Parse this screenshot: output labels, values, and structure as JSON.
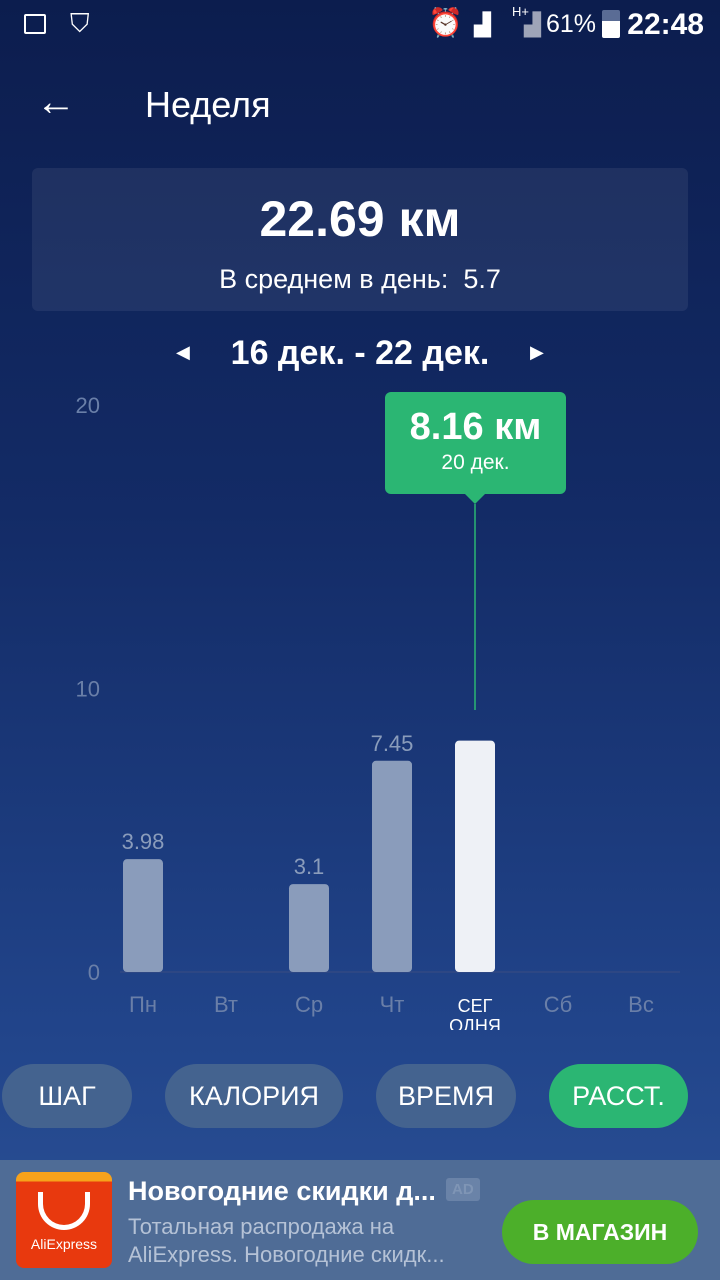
{
  "status_bar": {
    "battery": "61%",
    "time": "22:48",
    "network": "H+",
    "icons": [
      "image-icon",
      "shield-check-icon",
      "alarm-icon",
      "signal-icon",
      "signal-icon",
      "battery-icon"
    ]
  },
  "header": {
    "title": "Неделя",
    "back_icon": "arrow-left-icon"
  },
  "summary": {
    "total": "22.69 км",
    "avg_label": "В среднем в день:",
    "avg_value": "5.7"
  },
  "range": {
    "label": "16 дек. - 22 дек."
  },
  "tooltip": {
    "value": "8.16 км",
    "date": "20 дек."
  },
  "chart_data": {
    "type": "bar",
    "categories": [
      "Пн",
      "Вт",
      "Ср",
      "Чт",
      "СЕГ\nОДНЯ",
      "Сб",
      "Вс"
    ],
    "category_lines": [
      [
        "Пн"
      ],
      [
        "Вт"
      ],
      [
        "Ср"
      ],
      [
        "Чт"
      ],
      [
        "СЕГ",
        "ОДНЯ"
      ],
      [
        "Сб"
      ],
      [
        "Вс"
      ]
    ],
    "values": [
      3.98,
      0,
      3.1,
      7.45,
      8.16,
      null,
      null
    ],
    "data_labels": [
      "3.98",
      "",
      "3.1",
      "7.45",
      "",
      "",
      ""
    ],
    "yticks": [
      "0",
      "10",
      "20"
    ],
    "ylim": [
      0,
      20
    ],
    "selected_index": 4,
    "colors": {
      "bar": "#8a9cbb",
      "selected": "#eef1f6",
      "line": "#2bb673"
    }
  },
  "tabs": [
    {
      "label": "ШАГ",
      "active": false
    },
    {
      "label": "КАЛОРИЯ",
      "active": false
    },
    {
      "label": "ВРЕМЯ",
      "active": false
    },
    {
      "label": "РАССТ.",
      "active": true
    }
  ],
  "ad": {
    "logo_text": "AliExpress",
    "title": "Новогодние скидки д...",
    "badge": "AD",
    "text1": "Тотальная распродажа на",
    "text2": "AliExpress. Новогодние скидк...",
    "button": "В МАГАЗИН"
  },
  "colors": {
    "accent": "#2bb673",
    "ad_button": "#4caf2a"
  }
}
